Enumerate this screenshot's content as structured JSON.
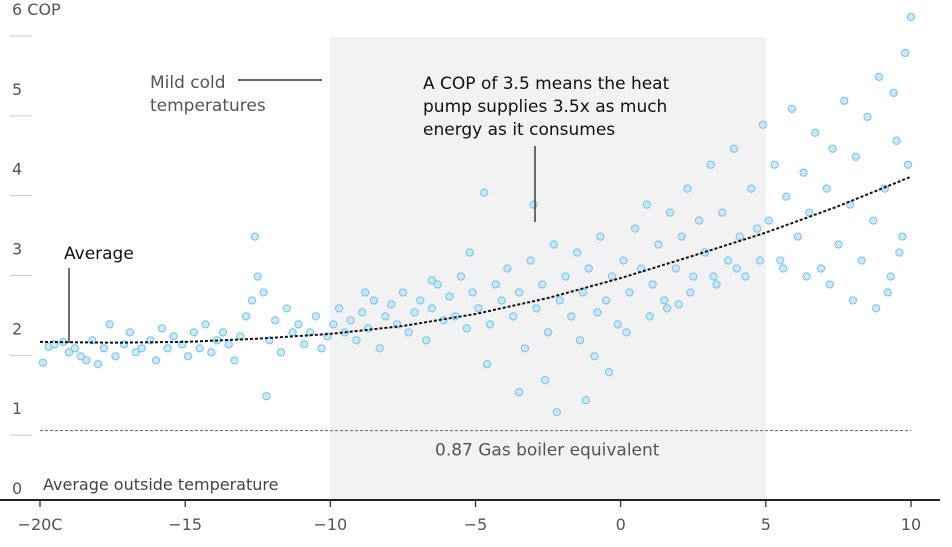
{
  "chart_data": {
    "type": "scatter",
    "x_unit_label": "C",
    "y_unit_label": "COP",
    "x_axis_title": "Average outside temperature",
    "xlim": [
      -20,
      10
    ],
    "ylim": [
      0,
      6
    ],
    "x_ticks": [
      -20,
      -15,
      -10,
      -5,
      0,
      5,
      10
    ],
    "x_tick_labels": [
      "−20C",
      "−15",
      "−10",
      "−5",
      "0",
      "5",
      "10"
    ],
    "y_ticks": [
      0,
      1,
      2,
      3,
      4,
      5,
      6
    ],
    "y_tick_labels": [
      "0",
      "1",
      "2",
      "3",
      "4",
      "5",
      "6 COP"
    ],
    "highlight_band": {
      "x_from": -10,
      "x_to": 5,
      "label_lines": [
        "Mild cold",
        "temperatures"
      ]
    },
    "reference_line": {
      "y": 0.87,
      "label": "0.87 Gas boiler equivalent"
    },
    "average_label": "Average",
    "annotation_lines": [
      "A COP of 3.5 means the heat",
      "pump supplies 3.5x as much",
      "energy as it consumes"
    ],
    "colors": {
      "points_fill": "#bfe6f8",
      "points_stroke": "#6cc8ee",
      "band": "#f2f2f2",
      "average_line": "#111111",
      "reference_line": "#777777",
      "axis": "#222222"
    },
    "series": [
      {
        "type": "trend",
        "x": [
          -20,
          -17.5,
          -15,
          -12.5,
          -10,
          -7.5,
          -5,
          -2.5,
          0,
          2.5,
          5,
          7.5,
          10
        ],
        "y": [
          1.98,
          1.97,
          1.98,
          2.02,
          2.08,
          2.18,
          2.33,
          2.53,
          2.78,
          3.06,
          3.35,
          3.68,
          4.05
        ]
      },
      {
        "type": "points",
        "points": [
          [
            -19.9,
            1.72
          ],
          [
            -19.7,
            1.92
          ],
          [
            -19.5,
            1.95
          ],
          [
            -19.2,
            1.98
          ],
          [
            -19,
            1.85
          ],
          [
            -18.8,
            1.9
          ],
          [
            -18.6,
            1.8
          ],
          [
            -18.4,
            1.75
          ],
          [
            -18.2,
            2.0
          ],
          [
            -18,
            1.7
          ],
          [
            -17.8,
            1.9
          ],
          [
            -17.6,
            2.2
          ],
          [
            -17.4,
            1.8
          ],
          [
            -17.1,
            1.95
          ],
          [
            -16.9,
            2.1
          ],
          [
            -16.7,
            1.85
          ],
          [
            -16.5,
            1.9
          ],
          [
            -16.2,
            2.0
          ],
          [
            -16,
            1.75
          ],
          [
            -15.8,
            2.15
          ],
          [
            -15.6,
            1.9
          ],
          [
            -15.4,
            2.05
          ],
          [
            -15.1,
            1.95
          ],
          [
            -14.9,
            1.8
          ],
          [
            -14.7,
            2.1
          ],
          [
            -14.5,
            1.9
          ],
          [
            -14.3,
            2.2
          ],
          [
            -14.1,
            1.85
          ],
          [
            -13.9,
            2.0
          ],
          [
            -13.7,
            2.1
          ],
          [
            -13.5,
            1.95
          ],
          [
            -13.3,
            1.75
          ],
          [
            -13.1,
            2.05
          ],
          [
            -12.9,
            2.3
          ],
          [
            -12.7,
            2.5
          ],
          [
            -12.5,
            2.8
          ],
          [
            -12.3,
            2.6
          ],
          [
            -12.1,
            2.0
          ],
          [
            -11.9,
            2.25
          ],
          [
            -11.7,
            1.85
          ],
          [
            -11.5,
            2.4
          ],
          [
            -11.3,
            2.1
          ],
          [
            -11.1,
            2.2
          ],
          [
            -10.9,
            1.95
          ],
          [
            -10.7,
            2.1
          ],
          [
            -10.5,
            2.3
          ],
          [
            -10.3,
            1.9
          ],
          [
            -10.1,
            2.05
          ],
          [
            -12.6,
            3.3
          ],
          [
            -12.2,
            1.3
          ],
          [
            -9.9,
            2.2
          ],
          [
            -9.7,
            2.4
          ],
          [
            -9.5,
            2.1
          ],
          [
            -9.3,
            2.25
          ],
          [
            -9.1,
            2.0
          ],
          [
            -8.9,
            2.35
          ],
          [
            -8.7,
            2.15
          ],
          [
            -8.5,
            2.5
          ],
          [
            -8.3,
            1.9
          ],
          [
            -8.1,
            2.3
          ],
          [
            -7.9,
            2.45
          ],
          [
            -7.7,
            2.2
          ],
          [
            -7.5,
            2.6
          ],
          [
            -7.3,
            2.1
          ],
          [
            -7.1,
            2.35
          ],
          [
            -6.9,
            2.5
          ],
          [
            -6.7,
            2.0
          ],
          [
            -6.5,
            2.4
          ],
          [
            -6.3,
            2.7
          ],
          [
            -6.1,
            2.25
          ],
          [
            -5.9,
            2.55
          ],
          [
            -5.7,
            2.3
          ],
          [
            -5.5,
            2.8
          ],
          [
            -5.3,
            2.15
          ],
          [
            -5.1,
            2.6
          ],
          [
            -4.9,
            2.4
          ],
          [
            -4.7,
            3.85
          ],
          [
            -4.5,
            2.2
          ],
          [
            -4.3,
            2.7
          ],
          [
            -4.1,
            2.5
          ],
          [
            -3.9,
            2.9
          ],
          [
            -3.7,
            2.3
          ],
          [
            -3.5,
            2.6
          ],
          [
            -3.3,
            1.9
          ],
          [
            -3.1,
            3.0
          ],
          [
            -2.9,
            2.4
          ],
          [
            -2.7,
            2.7
          ],
          [
            -2.5,
            2.1
          ],
          [
            -2.3,
            3.2
          ],
          [
            -2.1,
            2.5
          ],
          [
            -1.9,
            2.8
          ],
          [
            -1.7,
            2.3
          ],
          [
            -1.5,
            3.1
          ],
          [
            -1.3,
            2.6
          ],
          [
            -1.1,
            2.9
          ],
          [
            -0.9,
            1.8
          ],
          [
            -0.7,
            3.3
          ],
          [
            -0.5,
            2.5
          ],
          [
            -0.3,
            2.8
          ],
          [
            -0.1,
            2.2
          ],
          [
            -3.0,
            3.7
          ],
          [
            -2.6,
            1.5
          ],
          [
            -2.2,
            1.1
          ],
          [
            -1.2,
            1.25
          ],
          [
            -0.4,
            1.6
          ],
          [
            -3.5,
            1.35
          ],
          [
            -4.6,
            1.7
          ],
          [
            -6.5,
            2.75
          ],
          [
            -8.8,
            2.6
          ],
          [
            -5.2,
            3.1
          ],
          [
            0.1,
            3.0
          ],
          [
            0.3,
            2.6
          ],
          [
            0.5,
            3.4
          ],
          [
            0.7,
            2.9
          ],
          [
            0.9,
            3.7
          ],
          [
            1.1,
            2.7
          ],
          [
            1.3,
            3.2
          ],
          [
            1.5,
            2.5
          ],
          [
            1.7,
            3.6
          ],
          [
            1.9,
            2.9
          ],
          [
            2.1,
            3.3
          ],
          [
            2.3,
            3.9
          ],
          [
            2.5,
            2.8
          ],
          [
            2.7,
            3.5
          ],
          [
            2.9,
            3.1
          ],
          [
            3.1,
            4.2
          ],
          [
            3.3,
            2.7
          ],
          [
            3.5,
            3.6
          ],
          [
            3.7,
            3.0
          ],
          [
            3.9,
            4.4
          ],
          [
            4.1,
            3.3
          ],
          [
            4.3,
            2.8
          ],
          [
            4.5,
            3.9
          ],
          [
            4.7,
            3.4
          ],
          [
            4.9,
            4.7
          ],
          [
            -1.4,
            2.0
          ],
          [
            -0.8,
            2.35
          ],
          [
            0.2,
            2.1
          ],
          [
            1.0,
            2.3
          ],
          [
            2.0,
            2.45
          ],
          [
            5.1,
            3.5
          ],
          [
            5.3,
            4.2
          ],
          [
            5.5,
            3.0
          ],
          [
            5.7,
            3.8
          ],
          [
            5.9,
            4.9
          ],
          [
            6.1,
            3.3
          ],
          [
            6.3,
            4.1
          ],
          [
            6.5,
            3.6
          ],
          [
            6.7,
            4.6
          ],
          [
            6.9,
            2.9
          ],
          [
            7.1,
            3.9
          ],
          [
            7.3,
            4.4
          ],
          [
            7.5,
            3.2
          ],
          [
            7.7,
            5.0
          ],
          [
            7.9,
            3.7
          ],
          [
            8.1,
            4.3
          ],
          [
            8.3,
            3.0
          ],
          [
            8.5,
            4.8
          ],
          [
            8.7,
            3.5
          ],
          [
            8.9,
            5.3
          ],
          [
            9.1,
            3.9
          ],
          [
            9.3,
            2.8
          ],
          [
            9.5,
            4.5
          ],
          [
            9.7,
            3.3
          ],
          [
            9.9,
            4.2
          ],
          [
            10.0,
            6.05
          ],
          [
            9.8,
            5.6
          ],
          [
            9.6,
            3.1
          ],
          [
            9.4,
            5.1
          ],
          [
            9.2,
            2.6
          ],
          [
            8.8,
            2.4
          ],
          [
            8.0,
            2.5
          ],
          [
            7.2,
            2.7
          ],
          [
            6.4,
            2.8
          ],
          [
            5.6,
            2.9
          ],
          [
            4.8,
            3.0
          ],
          [
            4.0,
            2.9
          ],
          [
            3.2,
            2.8
          ],
          [
            2.4,
            2.6
          ],
          [
            1.6,
            2.4
          ]
        ]
      }
    ]
  }
}
